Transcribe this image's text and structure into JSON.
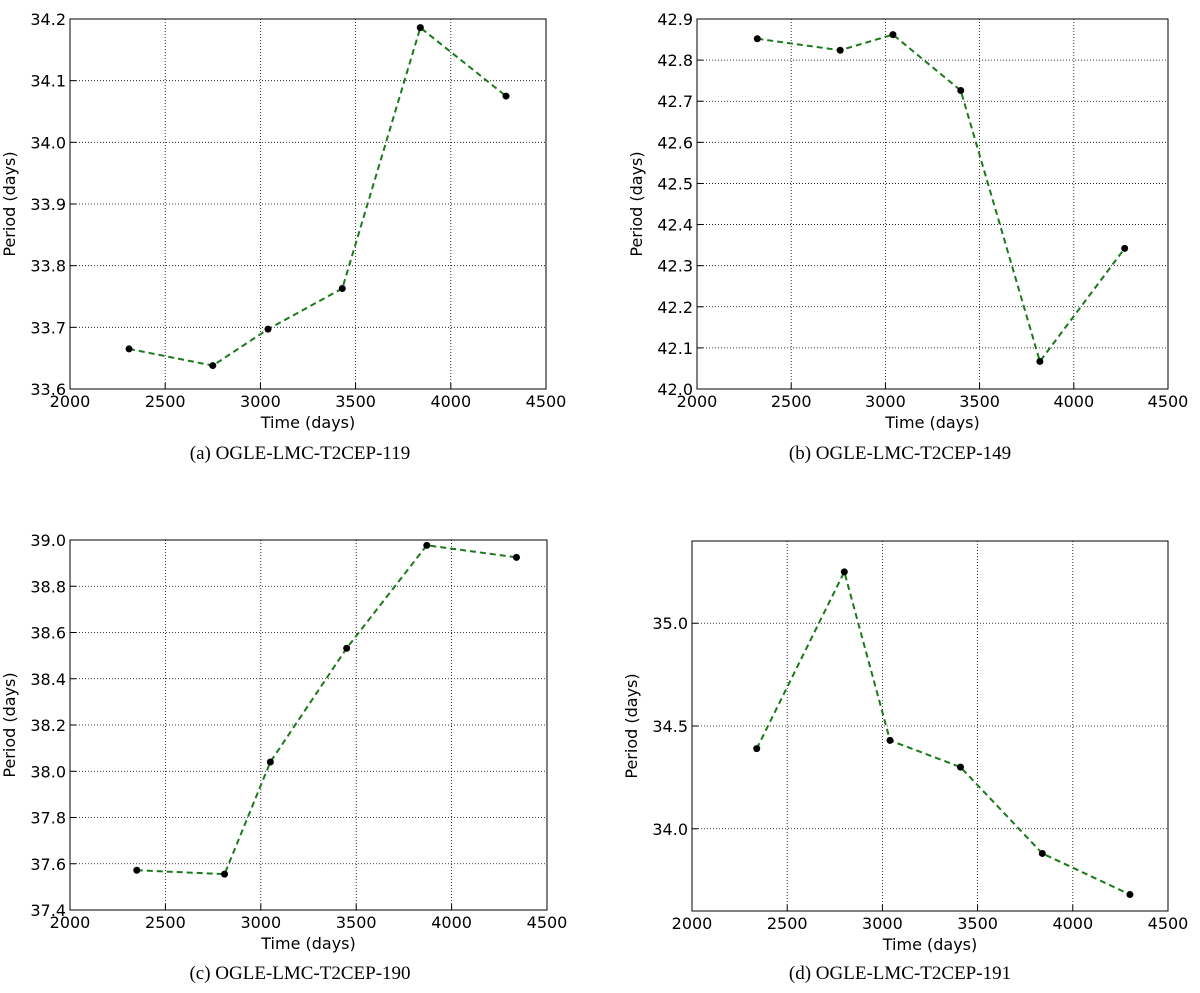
{
  "colors": {
    "line": "#1a7a1a",
    "marker": "#000000",
    "grid": "#000000",
    "axes": "#000000"
  },
  "chart_data": [
    {
      "type": "line",
      "caption": "(a) OGLE-LMC-T2CEP-119",
      "xlabel": "Time (days)",
      "ylabel": "Period (days)",
      "xlim": [
        2000,
        4500
      ],
      "ylim": [
        33.6,
        34.2
      ],
      "xticks": [
        "2000",
        "2500",
        "3000",
        "3500",
        "4000",
        "4500"
      ],
      "yticks": [
        "33.6",
        "33.7",
        "33.8",
        "33.9",
        "34.0",
        "34.1",
        "34.2"
      ],
      "grid": true,
      "x": [
        2310,
        2750,
        3040,
        3430,
        3840,
        4290
      ],
      "y": [
        33.665,
        33.638,
        33.697,
        33.763,
        34.186,
        34.075
      ]
    },
    {
      "type": "line",
      "caption": "(b) OGLE-LMC-T2CEP-149",
      "xlabel": "Time (days)",
      "ylabel": "Period (days)",
      "xlim": [
        2000,
        4500
      ],
      "ylim": [
        42.0,
        42.9
      ],
      "xticks": [
        "2000",
        "2500",
        "3000",
        "3500",
        "4000",
        "4500"
      ],
      "yticks": [
        "42.0",
        "42.1",
        "42.2",
        "42.3",
        "42.4",
        "42.5",
        "42.6",
        "42.7",
        "42.8",
        "42.9"
      ],
      "grid": true,
      "x": [
        2320,
        2760,
        3040,
        3400,
        3820,
        4270
      ],
      "y": [
        42.852,
        42.824,
        42.862,
        42.726,
        42.067,
        42.342
      ]
    },
    {
      "type": "line",
      "caption": "(c) OGLE-LMC-T2CEP-190",
      "xlabel": "Time (days)",
      "ylabel": "Period (days)",
      "xlim": [
        2000,
        4500
      ],
      "ylim": [
        37.4,
        39.0
      ],
      "xticks": [
        "2000",
        "2500",
        "3000",
        "3500",
        "4000",
        "4500"
      ],
      "yticks": [
        "37.4",
        "37.6",
        "37.8",
        "38.0",
        "38.2",
        "38.4",
        "38.6",
        "38.8",
        "39.0"
      ],
      "grid": true,
      "x": [
        2350,
        2810,
        3050,
        3450,
        3870,
        4340
      ],
      "y": [
        37.572,
        37.555,
        38.04,
        38.532,
        38.977,
        38.925
      ]
    },
    {
      "type": "line",
      "caption": "(d) OGLE-LMC-T2CEP-191",
      "xlabel": "Time (days)",
      "ylabel": "Period (days)",
      "xlim": [
        2000,
        4500
      ],
      "ylim": [
        33.6,
        35.4
      ],
      "xticks": [
        "2000",
        "2500",
        "3000",
        "3500",
        "4000",
        "4500"
      ],
      "yticks": [
        "34.0",
        "34.5",
        "35.0"
      ],
      "ytick_values": [
        34.0,
        34.5,
        35.0
      ],
      "grid": true,
      "x": [
        2340,
        2800,
        3040,
        3410,
        3840,
        4300
      ],
      "y": [
        34.39,
        35.25,
        34.43,
        34.3,
        33.88,
        33.68
      ]
    }
  ]
}
